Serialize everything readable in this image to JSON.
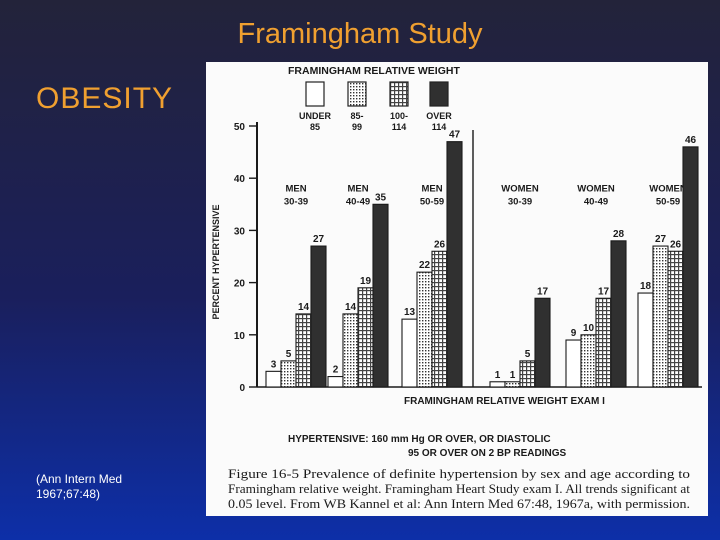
{
  "slide": {
    "title": "Framingham Study",
    "heading": "OBESITY",
    "citation_line1": "(Ann Intern Med",
    "citation_line2": "1967;67:48)"
  },
  "colors": {
    "title": "#f0a030",
    "under85": "#ffffff",
    "r85_99": "#d8d8d8",
    "r100_114": "#b8b8b8",
    "over114": "#303030"
  },
  "chart_data": {
    "type": "bar",
    "header": "FRAMINGHAM RELATIVE WEIGHT",
    "legend": [
      {
        "line1": "UNDER",
        "line2": "85",
        "color": "#ffffff"
      },
      {
        "line1": "85-",
        "line2": "99",
        "color": "#d8d8d8"
      },
      {
        "line1": "100-",
        "line2": "114",
        "color": "#b8b8b8"
      },
      {
        "line1": "OVER",
        "line2": "114",
        "color": "#303030"
      }
    ],
    "ylabel": "PERCENT HYPERTENSIVE",
    "ylim": [
      0,
      50
    ],
    "yticks": [
      0,
      10,
      20,
      30,
      40,
      50
    ],
    "xlabel": "FRAMINGHAM RELATIVE WEIGHT EXAM I",
    "groups": [
      {
        "line1": "MEN",
        "line2": "30-39",
        "values": [
          3,
          5,
          14,
          27
        ]
      },
      {
        "line1": "MEN",
        "line2": "40-49",
        "values": [
          2,
          14,
          19,
          35
        ]
      },
      {
        "line1": "MEN",
        "line2": "50-59",
        "values": [
          13,
          22,
          26,
          47
        ]
      },
      {
        "line1": "WOMEN",
        "line2": "30-39",
        "values": [
          1,
          1,
          5,
          17
        ]
      },
      {
        "line1": "WOMEN",
        "line2": "40-49",
        "values": [
          9,
          10,
          17,
          28
        ]
      },
      {
        "line1": "WOMEN",
        "line2": "50-59",
        "values": [
          18,
          27,
          26,
          46
        ]
      }
    ],
    "definition_line1": "HYPERTENSIVE:  160 mm Hg OR OVER, OR DIASTOLIC",
    "definition_line2": "95 OR OVER ON  2 BP READINGS",
    "caption_line1": "Figure  16-5  Prevalence of definite hypertension by sex and age according to",
    "caption_line2": "Framingham relative weight. Framingham Heart Study exam I. All trends significant at",
    "caption_line3": "0.05 level. From WB Kannel et al: Ann Intern Med 67:48, 1967a, with permission."
  }
}
